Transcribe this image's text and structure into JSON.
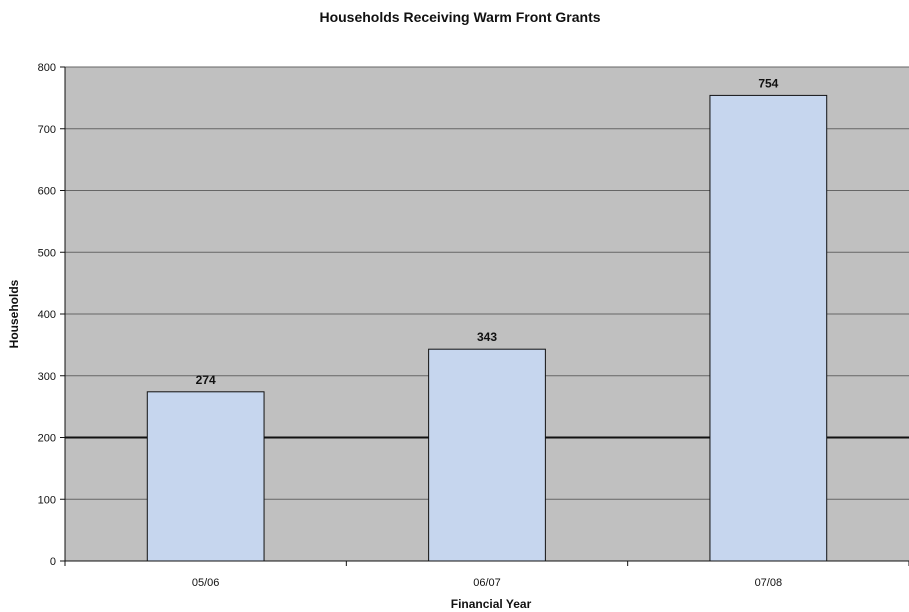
{
  "chart_data": {
    "type": "bar",
    "title": "Households Receiving Warm Front Grants",
    "xlabel": "Financial Year",
    "ylabel": "Households",
    "categories": [
      "05/06",
      "06/07",
      "07/08"
    ],
    "values": [
      274,
      343,
      754
    ],
    "data_labels": [
      "274",
      "343",
      "754"
    ],
    "ylim": [
      0,
      800
    ],
    "yticks": [
      0,
      100,
      200,
      300,
      400,
      500,
      600,
      700,
      800
    ],
    "grid": true,
    "legend": "none",
    "reference_line": 200,
    "colors": {
      "plot_background": "#c0c0c0",
      "bar_fill": "#c6d6ee",
      "bar_stroke": "#111111",
      "grid": "#666666",
      "reference_line": "#111111"
    }
  }
}
